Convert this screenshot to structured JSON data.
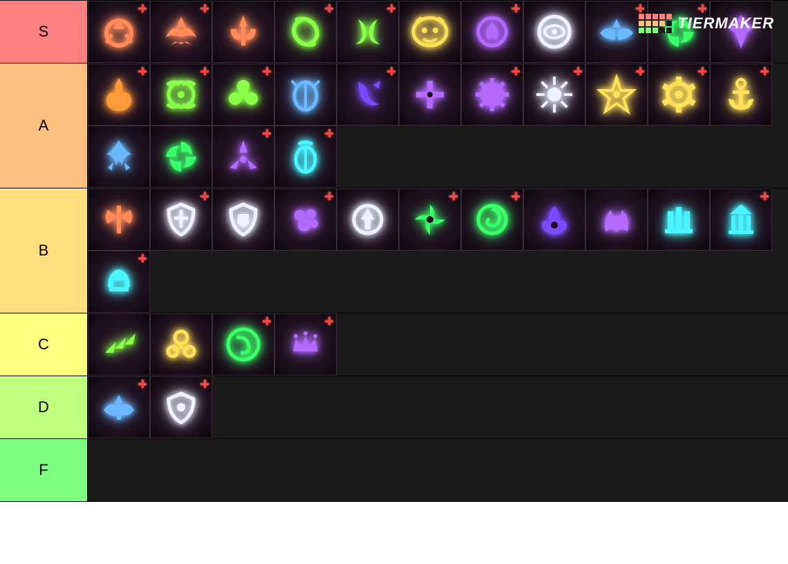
{
  "watermark": {
    "text": "TIERMAKER",
    "grid_colors": [
      "#ff7f7f",
      "#ff7f7f",
      "#ff7f7f",
      "#ff7f7f",
      "#ff7f7f",
      "#ffbf7f",
      "#ffbf7f",
      "#ffbf7f",
      "#ffbf7f",
      "#1a1a1a",
      "#7fff7f",
      "#7fff7f",
      "#7fff7f",
      "#1a1a1a",
      "#1a1a1a"
    ]
  },
  "colors": {
    "red": "#ff8a5a",
    "orange": "#ff9a3a",
    "green": "#8aff4a",
    "darkgreen": "#3aff6a",
    "yellow": "#ffe05a",
    "blue": "#6ab8ff",
    "cyan": "#4af5ff",
    "purple": "#b56aff",
    "deeppurple": "#7a4aff",
    "white": "#eef2ff"
  },
  "item_bg": "#1a0f1a",
  "item_border": "#3a2a3a",
  "tiers": [
    {
      "label": "S",
      "label_bg": "#ff7f7f",
      "items": [
        {
          "color": "red",
          "shape": "crest",
          "plus": true
        },
        {
          "color": "red",
          "shape": "wings",
          "plus": true
        },
        {
          "color": "red",
          "shape": "trident",
          "plus": false
        },
        {
          "color": "green",
          "shape": "swirl",
          "plus": true
        },
        {
          "color": "green",
          "shape": "twist",
          "plus": true
        },
        {
          "color": "yellow",
          "shape": "mask",
          "plus": false
        },
        {
          "color": "purple",
          "shape": "spade",
          "plus": true
        },
        {
          "color": "white",
          "shape": "eye",
          "plus": false
        },
        {
          "color": "blue",
          "shape": "bat",
          "plus": true
        },
        {
          "color": "darkgreen",
          "shape": "vortex",
          "plus": true
        },
        {
          "color": "purple",
          "shape": "gem",
          "plus": false
        }
      ]
    },
    {
      "label": "A",
      "label_bg": "#ffbf7f",
      "items": [
        {
          "color": "orange",
          "shape": "flame",
          "plus": true
        },
        {
          "color": "green",
          "shape": "leafeye",
          "plus": true
        },
        {
          "color": "green",
          "shape": "clover",
          "plus": true
        },
        {
          "color": "blue",
          "shape": "beetle",
          "plus": false
        },
        {
          "color": "deeppurple",
          "shape": "lizard",
          "plus": true
        },
        {
          "color": "purple",
          "shape": "cross",
          "plus": false
        },
        {
          "color": "purple",
          "shape": "gear",
          "plus": true
        },
        {
          "color": "white",
          "shape": "sun",
          "plus": true
        },
        {
          "color": "yellow",
          "shape": "stareye",
          "plus": true
        },
        {
          "color": "yellow",
          "shape": "cog",
          "plus": true
        },
        {
          "color": "yellow",
          "shape": "anchor",
          "plus": true
        },
        {
          "color": "blue",
          "shape": "flare",
          "plus": false
        },
        {
          "color": "darkgreen",
          "shape": "vortex",
          "plus": false
        },
        {
          "color": "purple",
          "shape": "tritip",
          "plus": true
        },
        {
          "color": "cyan",
          "shape": "scarab",
          "plus": true
        }
      ]
    },
    {
      "label": "B",
      "label_bg": "#ffdf7f",
      "items": [
        {
          "color": "red",
          "shape": "axe",
          "plus": false
        },
        {
          "color": "white",
          "shape": "shieldc",
          "plus": true
        },
        {
          "color": "white",
          "shape": "shield",
          "plus": false
        },
        {
          "color": "purple",
          "shape": "blob",
          "plus": true
        },
        {
          "color": "white",
          "shape": "medal",
          "plus": false
        },
        {
          "color": "darkgreen",
          "shape": "shuriken",
          "plus": true
        },
        {
          "color": "darkgreen",
          "shape": "spiral",
          "plus": true
        },
        {
          "color": "deeppurple",
          "shape": "eyefire",
          "plus": false
        },
        {
          "color": "purple",
          "shape": "firewing",
          "plus": false
        },
        {
          "color": "cyan",
          "shape": "pillars",
          "plus": false
        },
        {
          "color": "cyan",
          "shape": "temple",
          "plus": true
        },
        {
          "color": "cyan",
          "shape": "helm",
          "plus": true
        }
      ]
    },
    {
      "label": "C",
      "label_bg": "#fefe7f",
      "items": [
        {
          "color": "green",
          "shape": "arrow3",
          "plus": false
        },
        {
          "color": "yellow",
          "shape": "key3",
          "plus": false
        },
        {
          "color": "darkgreen",
          "shape": "orbswirl",
          "plus": true
        },
        {
          "color": "purple",
          "shape": "crown",
          "plus": true
        }
      ]
    },
    {
      "label": "D",
      "label_bg": "#bfff7f",
      "items": [
        {
          "color": "blue",
          "shape": "angel",
          "plus": true
        },
        {
          "color": "white",
          "shape": "shieldw",
          "plus": true
        }
      ]
    },
    {
      "label": "F",
      "label_bg": "#7fff7f",
      "items": []
    }
  ]
}
